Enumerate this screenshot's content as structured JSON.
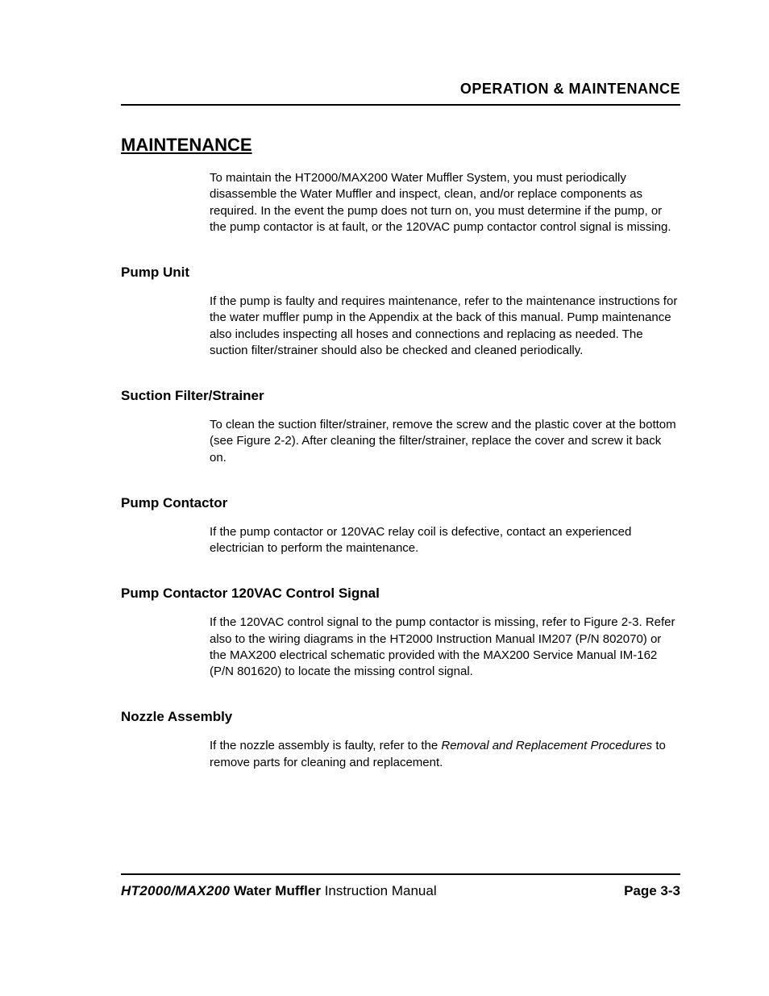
{
  "header": {
    "right": "OPERATION & MAINTENANCE"
  },
  "title": "MAINTENANCE",
  "intro": "To maintain the HT2000/MAX200 Water Muffler System, you must periodically disassemble the Water Muffler and inspect, clean, and/or replace components as required.  In the event the pump does not turn on, you must determine if the pump, or the pump contactor is at fault, or the 120VAC pump contactor control signal is missing.",
  "sections": {
    "pump_unit": {
      "title": "Pump Unit",
      "body": "If the pump is faulty and requires maintenance, refer to the maintenance instructions for the water muffler pump in the Appendix at the back of this manual.  Pump maintenance also includes inspecting all hoses and connections and replacing as needed.  The suction filter/strainer should also be checked and cleaned periodically."
    },
    "strainer": {
      "title": "Suction Filter/Strainer",
      "body": "To clean the suction filter/strainer, remove the screw and the plastic cover at the bottom (see Figure 2-2).  After cleaning the filter/strainer, replace the cover and screw it back on."
    },
    "contactor": {
      "title": "Pump Contactor",
      "body": "If the pump contactor or 120VAC relay coil is defective, contact an experienced electrician to perform the maintenance."
    },
    "control_signal": {
      "title": "Pump Contactor 120VAC Control Signal",
      "body": "If the 120VAC control signal to the pump contactor is missing, refer to Figure 2-3.  Refer also to the wiring diagrams in the HT2000 Instruction Manual IM207 (P/N 802070) or the MAX200 electrical schematic provided with the MAX200 Service Manual IM-162 (P/N 801620) to locate the missing control signal."
    },
    "nozzle": {
      "title": "Nozzle Assembly",
      "body_pre": "If the nozzle assembly is faulty, refer to the ",
      "body_em": "Removal and Replacement Procedures",
      "body_post": " to remove parts for cleaning and replacement."
    }
  },
  "footer": {
    "product": "HT2000/MAX200",
    "wm": " Water Muffler",
    "doc": " Instruction Manual",
    "page": "Page 3-3"
  }
}
